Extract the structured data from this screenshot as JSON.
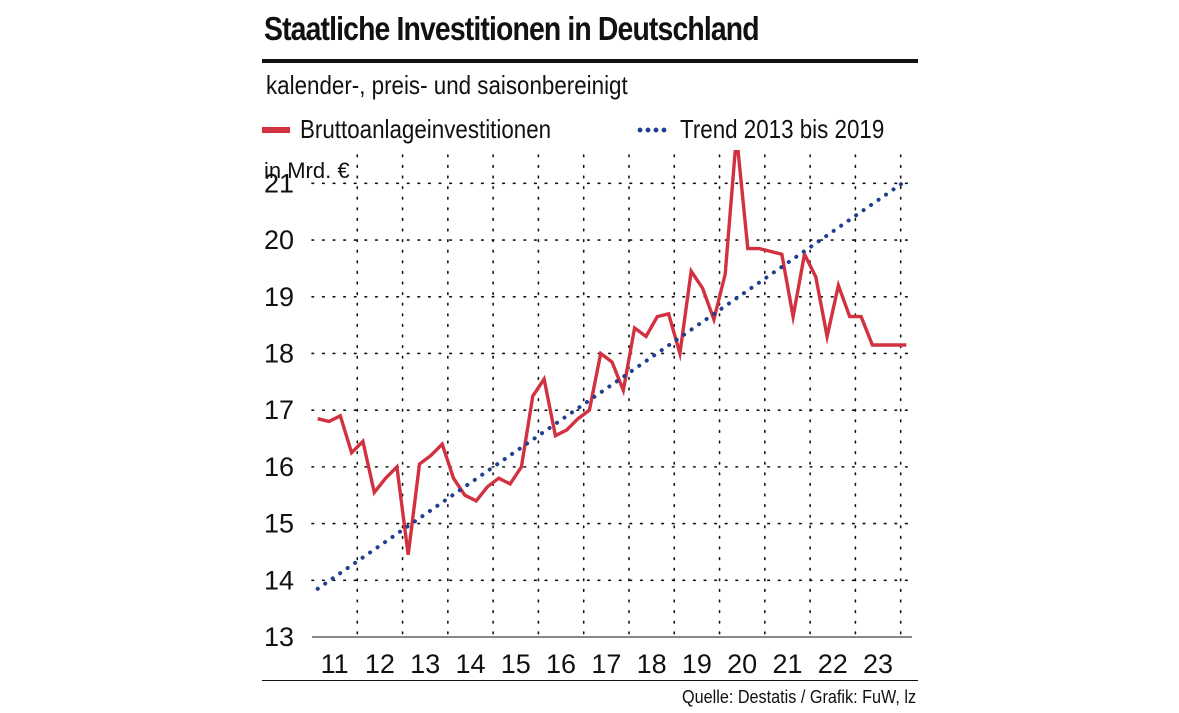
{
  "header": {
    "title": "Staatliche Investitionen in Deutschland",
    "subtitle": "kalender-, preis- und saisonbereinigt"
  },
  "legend": {
    "series_label": "Bruttoanlageinvestitionen",
    "trend_label": "Trend 2013 bis 2019"
  },
  "source": "Quelle: Destatis / Grafik: FuW, lz",
  "colors": {
    "series": "#d2323f",
    "trend": "#1f3f8f",
    "grid": "#111111",
    "text": "#111111"
  },
  "chart_data": {
    "type": "line",
    "title": "Staatliche Investitionen in Deutschland",
    "subtitle": "kalender-, preis- und saisonbereinigt",
    "unit_label": "in Mrd. €",
    "xlabel": "",
    "ylabel": "in Mrd. €",
    "ylim": [
      13,
      21.5
    ],
    "yticks": [
      13,
      14,
      15,
      16,
      17,
      18,
      19,
      20,
      21
    ],
    "xlim": [
      2011,
      2024.25
    ],
    "xticks": [
      {
        "label": "11",
        "at": 2011.5
      },
      {
        "label": "12",
        "at": 2012.5
      },
      {
        "label": "13",
        "at": 2013.5
      },
      {
        "label": "14",
        "at": 2014.5
      },
      {
        "label": "15",
        "at": 2015.5
      },
      {
        "label": "16",
        "at": 2016.5
      },
      {
        "label": "17",
        "at": 2017.5
      },
      {
        "label": "18",
        "at": 2018.5
      },
      {
        "label": "19",
        "at": 2019.5
      },
      {
        "label": "20",
        "at": 2020.5
      },
      {
        "label": "21",
        "at": 2021.5
      },
      {
        "label": "22",
        "at": 2022.5
      },
      {
        "label": "23",
        "at": 2023.5
      }
    ],
    "x_gridlines": [
      2012,
      2013,
      2014,
      2015,
      2016,
      2017,
      2018,
      2019,
      2020,
      2021,
      2022,
      2023,
      2024
    ],
    "grid": true,
    "legend_position": "top",
    "series": [
      {
        "name": "Bruttoanlageinvestitionen",
        "style": "solid",
        "x": [
          2011.125,
          2011.375,
          2011.625,
          2011.875,
          2012.125,
          2012.375,
          2012.625,
          2012.875,
          2013.125,
          2013.375,
          2013.625,
          2013.875,
          2014.125,
          2014.375,
          2014.625,
          2014.875,
          2015.125,
          2015.375,
          2015.625,
          2015.875,
          2016.125,
          2016.375,
          2016.625,
          2016.875,
          2017.125,
          2017.375,
          2017.625,
          2017.875,
          2018.125,
          2018.375,
          2018.625,
          2018.875,
          2019.125,
          2019.375,
          2019.625,
          2019.875,
          2020.125,
          2020.375,
          2020.625,
          2020.875,
          2021.125,
          2021.375,
          2021.625,
          2021.875,
          2022.125,
          2022.375,
          2022.625,
          2022.875,
          2023.125,
          2023.375,
          2023.625,
          2023.875,
          2024.125
        ],
        "values": [
          16.85,
          16.8,
          16.9,
          16.25,
          16.45,
          15.55,
          15.8,
          16.0,
          14.45,
          16.05,
          16.2,
          16.4,
          15.8,
          15.5,
          15.4,
          15.65,
          15.8,
          15.7,
          16.0,
          17.25,
          17.55,
          16.55,
          16.65,
          16.85,
          17.0,
          18.0,
          17.85,
          17.35,
          18.45,
          18.3,
          18.65,
          18.7,
          18.0,
          19.45,
          19.15,
          18.6,
          19.4,
          21.85,
          19.85,
          19.85,
          19.8,
          19.75,
          18.65,
          19.75,
          19.35,
          18.3,
          19.2,
          18.65,
          18.65,
          18.15,
          18.15,
          18.15,
          18.15
        ]
      },
      {
        "name": "Trend 2013 bis 2019",
        "style": "dotted",
        "x": [
          2011.125,
          2024.125
        ],
        "values": [
          13.85,
          21.05
        ]
      }
    ]
  }
}
